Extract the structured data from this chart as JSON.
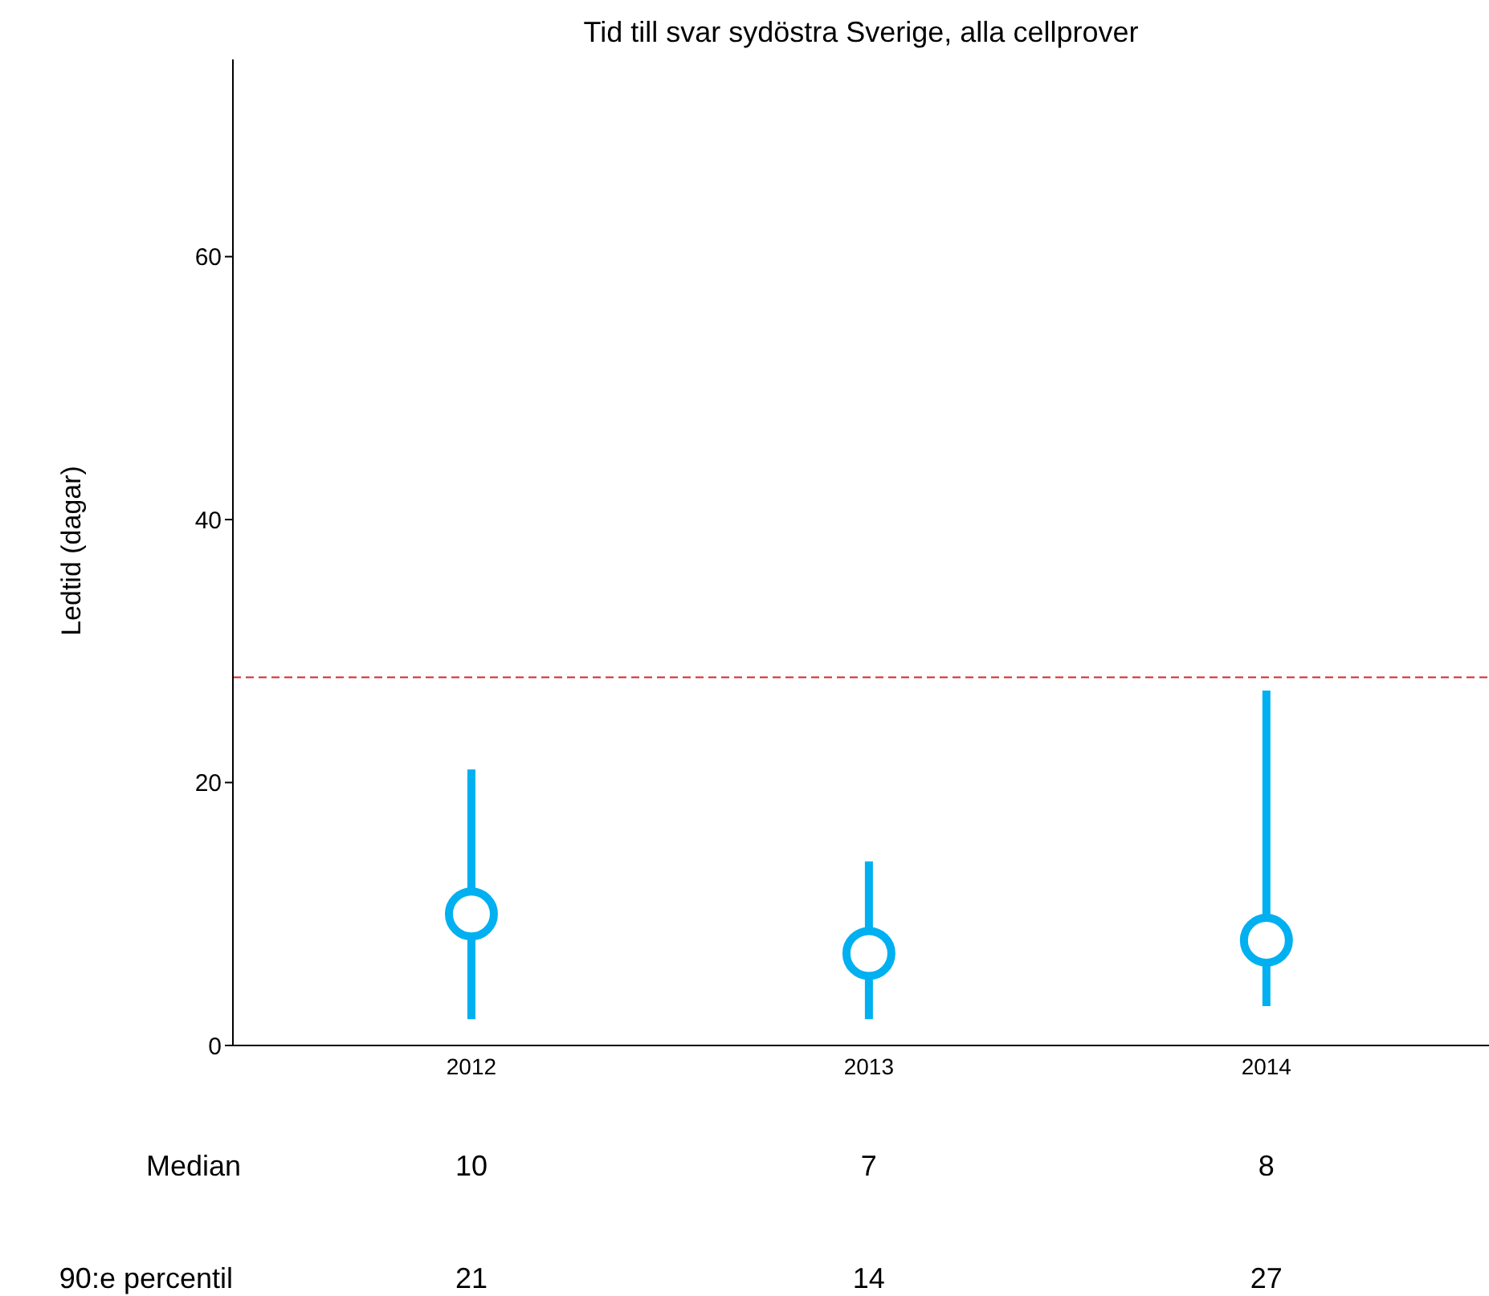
{
  "chart_data": {
    "type": "scatter",
    "title": "Tid till svar sydöstra Sverige, alla cellprover",
    "ylabel": "Ledtid (dagar)",
    "categories": [
      "2012",
      "2013",
      "2014"
    ],
    "series": [
      {
        "name": "Median",
        "color": "#00b0f0",
        "values": [
          10,
          7,
          8
        ],
        "errors": [
          [
            2,
            21
          ],
          [
            2,
            14
          ],
          [
            3,
            27
          ]
        ]
      }
    ],
    "data_labels": true,
    "marker": "circle",
    "ylim": [
      0,
      75
    ],
    "yticks": [
      0,
      20,
      40,
      60
    ],
    "grid": false,
    "legend": false,
    "ref_lines": [
      {
        "axis": "y",
        "value": 28,
        "color": "#d62728",
        "line_style": "dashed"
      }
    ],
    "annotations": [
      "90:e percentil",
      "21",
      "14",
      "27"
    ]
  }
}
